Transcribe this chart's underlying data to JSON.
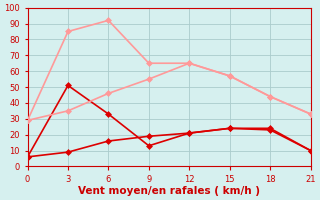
{
  "series": [
    {
      "x": [
        0,
        3,
        6,
        9,
        12,
        15,
        18,
        21
      ],
      "y": [
        6,
        51,
        33,
        13,
        21,
        24,
        24,
        10
      ],
      "color": "#dd0000",
      "linewidth": 1.2,
      "markersize": 3
    },
    {
      "x": [
        0,
        3,
        6,
        9,
        12,
        15,
        18,
        21
      ],
      "y": [
        6,
        9,
        16,
        19,
        21,
        24,
        23,
        10
      ],
      "color": "#dd0000",
      "linewidth": 1.2,
      "markersize": 3
    },
    {
      "x": [
        0,
        3,
        6,
        9,
        12,
        15,
        18,
        21
      ],
      "y": [
        29,
        85,
        92,
        65,
        65,
        57,
        44,
        33
      ],
      "color": "#ff9999",
      "linewidth": 1.2,
      "markersize": 3
    },
    {
      "x": [
        0,
        3,
        6,
        9,
        12,
        15,
        18,
        21
      ],
      "y": [
        29,
        35,
        46,
        55,
        65,
        57,
        44,
        33
      ],
      "color": "#ff9999",
      "linewidth": 1.2,
      "markersize": 3
    }
  ],
  "background_color": "#d6f0ef",
  "grid_color": "#aacccc",
  "xlabel": "Vent moyen/en rafales ( km/h )",
  "xlabel_color": "#cc0000",
  "xlabel_fontsize": 7.5,
  "ylim": [
    0,
    100
  ],
  "xlim": [
    0,
    21
  ],
  "xticks": [
    0,
    3,
    6,
    9,
    12,
    15,
    18,
    21
  ],
  "yticks": [
    0,
    10,
    20,
    30,
    40,
    50,
    60,
    70,
    80,
    90,
    100
  ],
  "tick_color": "#cc0000",
  "tick_labelsize": 6,
  "spine_color": "#cc0000"
}
